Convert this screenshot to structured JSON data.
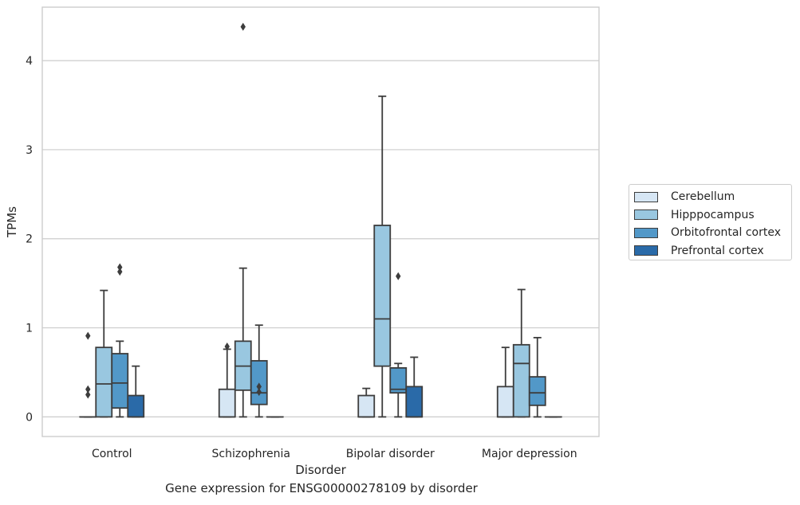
{
  "caption": "Gene expression for ENSG00000278109 by disorder",
  "chart_data": {
    "type": "boxplot",
    "xlabel": "Disorder",
    "ylabel": "TPMs",
    "categories": [
      "Control",
      "Schizophrenia",
      "Bipolar disorder",
      "Major depression"
    ],
    "ylim": [
      -0.22,
      4.6
    ],
    "yticks": [
      0,
      1,
      2,
      3,
      4
    ],
    "grid": true,
    "legend_position": "right",
    "series": [
      {
        "name": "Cerebellum",
        "color": "#d6e6f4",
        "boxes": [
          {
            "q1": 0,
            "median": 0,
            "q3": 0,
            "whisker_low": 0,
            "whisker_high": 0,
            "outliers": [
              0.91,
              0.31,
              0.25
            ]
          },
          {
            "q1": 0,
            "median": 0,
            "q3": 0.31,
            "whisker_low": 0,
            "whisker_high": 0.76,
            "outliers": [
              0.79
            ]
          },
          {
            "q1": 0,
            "median": 0,
            "q3": 0.24,
            "whisker_low": 0,
            "whisker_high": 0.32,
            "outliers": []
          },
          {
            "q1": 0,
            "median": 0,
            "q3": 0.34,
            "whisker_low": 0,
            "whisker_high": 0.78,
            "outliers": []
          }
        ]
      },
      {
        "name": "Hipppocampus",
        "color": "#99c7e0",
        "boxes": [
          {
            "q1": 0,
            "median": 0.37,
            "q3": 0.78,
            "whisker_low": 0,
            "whisker_high": 1.42,
            "outliers": []
          },
          {
            "q1": 0.3,
            "median": 0.57,
            "q3": 0.85,
            "whisker_low": 0,
            "whisker_high": 1.67,
            "outliers": [
              4.38
            ]
          },
          {
            "q1": 0.57,
            "median": 1.1,
            "q3": 2.15,
            "whisker_low": 0,
            "whisker_high": 3.6,
            "outliers": []
          },
          {
            "q1": 0,
            "median": 0.6,
            "q3": 0.81,
            "whisker_low": 0,
            "whisker_high": 1.43,
            "outliers": []
          }
        ]
      },
      {
        "name": "Orbitofrontal cortex",
        "color": "#5298c8",
        "boxes": [
          {
            "q1": 0.1,
            "median": 0.38,
            "q3": 0.71,
            "whisker_low": 0,
            "whisker_high": 0.85,
            "outliers": [
              1.68,
              1.63
            ]
          },
          {
            "q1": 0.14,
            "median": 0.27,
            "q3": 0.63,
            "whisker_low": 0,
            "whisker_high": 1.03,
            "outliers": [
              0.34,
              0.28
            ]
          },
          {
            "q1": 0.27,
            "median": 0.31,
            "q3": 0.55,
            "whisker_low": 0,
            "whisker_high": 0.6,
            "outliers": [
              1.58
            ]
          },
          {
            "q1": 0.13,
            "median": 0.27,
            "q3": 0.45,
            "whisker_low": 0,
            "whisker_high": 0.89,
            "outliers": []
          }
        ]
      },
      {
        "name": "Prefrontal cortex",
        "color": "#2a6aa8",
        "boxes": [
          {
            "q1": 0,
            "median": 0,
            "q3": 0.24,
            "whisker_low": 0,
            "whisker_high": 0.57,
            "outliers": []
          },
          {
            "q1": 0,
            "median": 0,
            "q3": 0,
            "whisker_low": 0,
            "whisker_high": 0,
            "outliers": []
          },
          {
            "q1": 0,
            "median": 0,
            "q3": 0.34,
            "whisker_low": 0,
            "whisker_high": 0.67,
            "outliers": []
          },
          {
            "q1": 0,
            "median": 0,
            "q3": 0,
            "whisker_low": 0,
            "whisker_high": 0,
            "outliers": []
          }
        ]
      }
    ]
  }
}
